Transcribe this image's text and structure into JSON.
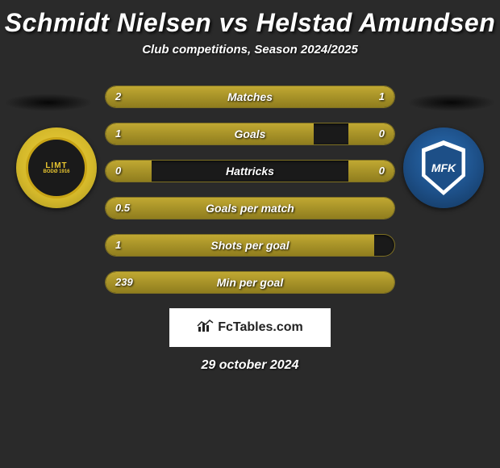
{
  "title": "Schmidt Nielsen vs Helstad Amundsen",
  "subtitle": "Club competitions, Season 2024/2025",
  "date": "29 october 2024",
  "watermark": "FcTables.com",
  "badges": {
    "left": {
      "line1": "LIMT",
      "line2": "BODØ 1916"
    },
    "right": {
      "text": "MFK"
    }
  },
  "colors": {
    "bar_fill": "#a69128",
    "bar_border": "#a69128",
    "bg": "#2a2a2a"
  },
  "stats": [
    {
      "label": "Matches",
      "left_val": "2",
      "right_val": "1",
      "left_pct": 72,
      "right_pct": 28
    },
    {
      "label": "Goals",
      "left_val": "1",
      "right_val": "0",
      "left_pct": 72,
      "right_pct": 16
    },
    {
      "label": "Hattricks",
      "left_val": "0",
      "right_val": "0",
      "left_pct": 16,
      "right_pct": 16
    },
    {
      "label": "Goals per match",
      "left_val": "0.5",
      "right_val": "",
      "left_pct": 100,
      "right_pct": 0
    },
    {
      "label": "Shots per goal",
      "left_val": "1",
      "right_val": "",
      "left_pct": 93,
      "right_pct": 0
    },
    {
      "label": "Min per goal",
      "left_val": "239",
      "right_val": "",
      "left_pct": 100,
      "right_pct": 0
    }
  ]
}
